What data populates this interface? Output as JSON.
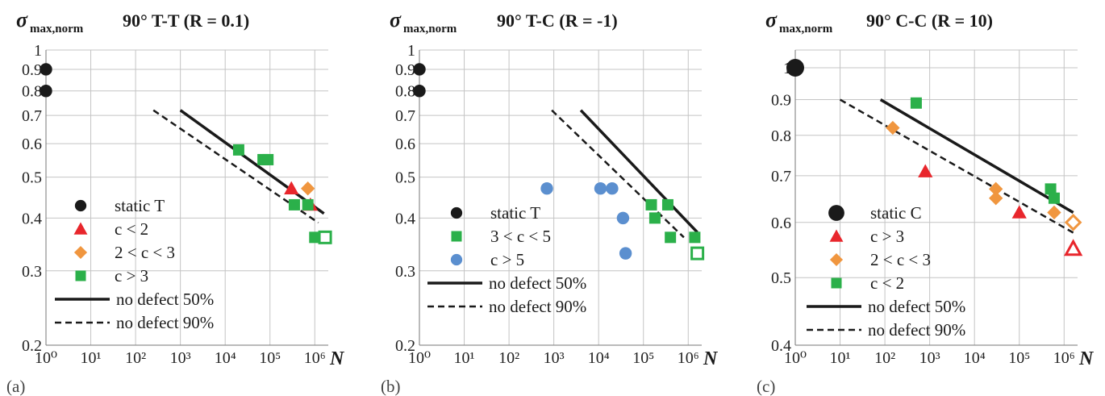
{
  "ylabel_main": "σ",
  "ylabel_sub": "max,norm",
  "xlabel": "N",
  "colors": {
    "black": "#1a1a1a",
    "red": "#e8262c",
    "orange": "#f0963f",
    "green": "#2bb04a",
    "blue": "#5b8fcf"
  },
  "chart_data": [
    {
      "type": "scatter",
      "panel_label": "(a)",
      "title": "90° T-T (R = 0.1)",
      "xscale": "log",
      "yscale": "log",
      "xlim": [
        1,
        2000000
      ],
      "ylim": [
        0.2,
        1.0
      ],
      "xticks": [
        "10⁰",
        "10¹",
        "10²",
        "10³",
        "10⁴",
        "10⁵",
        "10⁶"
      ],
      "yticks": [
        {
          "v": 0.2,
          "t": "0.2"
        },
        {
          "v": 0.3,
          "t": "0.3"
        },
        {
          "v": 0.4,
          "t": "0.4"
        },
        {
          "v": 0.5,
          "t": "0.5"
        },
        {
          "v": 0.6,
          "t": "0.6"
        },
        {
          "v": 0.7,
          "t": "0.7"
        },
        {
          "v": 0.8,
          "t": "0.8"
        },
        {
          "v": 0.9,
          "t": "0.9"
        },
        {
          "v": 1.0,
          "t": "1"
        }
      ],
      "series": [
        {
          "name": "static T",
          "marker": "circle",
          "color": "black",
          "points": [
            {
              "x": 1,
              "y": 0.9
            },
            {
              "x": 1,
              "y": 0.8
            }
          ]
        },
        {
          "name": "c < 2",
          "marker": "triangle",
          "color": "red",
          "points": [
            {
              "x": 300000,
              "y": 0.47
            },
            {
              "x": 800000,
              "y": 0.43
            }
          ]
        },
        {
          "name": "2 < c < 3",
          "marker": "diamond",
          "color": "orange",
          "points": [
            {
              "x": 700000,
              "y": 0.47
            }
          ]
        },
        {
          "name": "c > 3",
          "marker": "square",
          "color": "green",
          "points": [
            {
              "x": 20000,
              "y": 0.58
            },
            {
              "x": 70000,
              "y": 0.55
            },
            {
              "x": 90000,
              "y": 0.55
            },
            {
              "x": 350000,
              "y": 0.43
            },
            {
              "x": 700000,
              "y": 0.43
            },
            {
              "x": 1000000,
              "y": 0.36
            },
            {
              "x": 1700000,
              "y": 0.36,
              "hollow": true
            }
          ]
        }
      ],
      "lines": [
        {
          "name": "no defect 50%",
          "style": "solid",
          "x": [
            1000,
            1600000
          ],
          "y": [
            0.72,
            0.41
          ]
        },
        {
          "name": "no defect 90%",
          "style": "dashed",
          "x": [
            250,
            1200000
          ],
          "y": [
            0.72,
            0.39
          ]
        }
      ],
      "legend": [
        {
          "label": "static T",
          "marker": "circle",
          "color": "black"
        },
        {
          "label": "c < 2",
          "marker": "triangle",
          "color": "red"
        },
        {
          "label": "2 < c < 3",
          "marker": "diamond",
          "color": "orange"
        },
        {
          "label": "c > 3",
          "marker": "square",
          "color": "green"
        },
        {
          "label": "no defect 50%",
          "marker": "solid"
        },
        {
          "label": "no defect 90%",
          "marker": "dashed"
        }
      ]
    },
    {
      "type": "scatter",
      "panel_label": "(b)",
      "title": "90° T-C (R = -1)",
      "xscale": "log",
      "yscale": "log",
      "xlim": [
        1,
        2000000
      ],
      "ylim": [
        0.2,
        1.0
      ],
      "xticks": [
        "10⁰",
        "10¹",
        "10²",
        "10³",
        "10⁴",
        "10⁵",
        "10⁶"
      ],
      "yticks": [
        {
          "v": 0.2,
          "t": "0.2"
        },
        {
          "v": 0.3,
          "t": "0.3"
        },
        {
          "v": 0.4,
          "t": "0.4"
        },
        {
          "v": 0.5,
          "t": "0.5"
        },
        {
          "v": 0.6,
          "t": "0.6"
        },
        {
          "v": 0.7,
          "t": "0.7"
        },
        {
          "v": 0.8,
          "t": "0.8"
        },
        {
          "v": 0.9,
          "t": "0.9"
        },
        {
          "v": 1.0,
          "t": "1"
        }
      ],
      "series": [
        {
          "name": "static T",
          "marker": "circle",
          "color": "black",
          "points": [
            {
              "x": 1,
              "y": 0.9
            },
            {
              "x": 1,
              "y": 0.8
            }
          ]
        },
        {
          "name": "3 < c < 5",
          "marker": "square",
          "color": "green",
          "points": [
            {
              "x": 150000,
              "y": 0.43
            },
            {
              "x": 180000,
              "y": 0.4
            },
            {
              "x": 350000,
              "y": 0.43
            },
            {
              "x": 400000,
              "y": 0.36
            },
            {
              "x": 1400000,
              "y": 0.36
            },
            {
              "x": 1600000,
              "y": 0.33,
              "hollow": true
            }
          ]
        },
        {
          "name": "c > 5",
          "marker": "circle",
          "color": "blue",
          "points": [
            {
              "x": 700,
              "y": 0.47
            },
            {
              "x": 11000,
              "y": 0.47
            },
            {
              "x": 20000,
              "y": 0.47
            },
            {
              "x": 35000,
              "y": 0.4
            },
            {
              "x": 40000,
              "y": 0.33
            }
          ]
        }
      ],
      "lines": [
        {
          "name": "no defect 50%",
          "style": "solid",
          "x": [
            4000,
            1600000
          ],
          "y": [
            0.72,
            0.37
          ]
        },
        {
          "name": "no defect 90%",
          "style": "dashed",
          "x": [
            900,
            800000
          ],
          "y": [
            0.72,
            0.36
          ]
        }
      ],
      "legend": [
        {
          "label": "static T",
          "marker": "circle",
          "color": "black"
        },
        {
          "label": "3 < c < 5",
          "marker": "square",
          "color": "green"
        },
        {
          "label": "c > 5",
          "marker": "circle",
          "color": "blue"
        },
        {
          "label": "no defect 50%",
          "marker": "solid"
        },
        {
          "label": "no defect 90%",
          "marker": "dashed"
        }
      ]
    },
    {
      "type": "scatter",
      "panel_label": "(c)",
      "title": "90° C-C (R = 10)",
      "xscale": "log",
      "yscale": "log",
      "xlim": [
        1,
        2000000
      ],
      "ylim": [
        0.4,
        1.0
      ],
      "xticks": [
        "10⁰",
        "10¹",
        "10²",
        "10³",
        "10⁴",
        "10⁵",
        "10⁶"
      ],
      "yticks": [
        {
          "v": 0.4,
          "t": "0.4"
        },
        {
          "v": 0.5,
          "t": "0.5"
        },
        {
          "v": 0.6,
          "t": "0.6"
        },
        {
          "v": 0.7,
          "t": "0.7"
        },
        {
          "v": 0.8,
          "t": "0.8"
        },
        {
          "v": 0.9,
          "t": "0.9"
        },
        {
          "v": 1.0,
          "t": "1"
        }
      ],
      "series": [
        {
          "name": "static C",
          "marker": "circle",
          "color": "black",
          "points": [
            {
              "x": 1,
              "y": 1.0
            }
          ]
        },
        {
          "name": "c > 3",
          "marker": "triangle",
          "color": "red",
          "points": [
            {
              "x": 800,
              "y": 0.71
            },
            {
              "x": 100000,
              "y": 0.62
            },
            {
              "x": 1600000,
              "y": 0.55,
              "hollow": true
            }
          ]
        },
        {
          "name": "2 < c < 3",
          "marker": "diamond",
          "color": "orange",
          "points": [
            {
              "x": 150,
              "y": 0.82
            },
            {
              "x": 30000,
              "y": 0.67
            },
            {
              "x": 30000,
              "y": 0.65
            },
            {
              "x": 600000,
              "y": 0.62
            },
            {
              "x": 1600000,
              "y": 0.6,
              "hollow": true
            }
          ]
        },
        {
          "name": "c < 2",
          "marker": "square",
          "color": "green",
          "points": [
            {
              "x": 500,
              "y": 0.89
            },
            {
              "x": 500000,
              "y": 0.67
            },
            {
              "x": 600000,
              "y": 0.65
            }
          ]
        }
      ],
      "lines": [
        {
          "name": "no defect 50%",
          "style": "solid",
          "x": [
            80,
            1600000
          ],
          "y": [
            0.9,
            0.62
          ]
        },
        {
          "name": "no defect 90%",
          "style": "dashed",
          "x": [
            10,
            1600000
          ],
          "y": [
            0.9,
            0.58
          ]
        }
      ],
      "legend": [
        {
          "label": "static C",
          "marker": "circle",
          "color": "black"
        },
        {
          "label": "c > 3",
          "marker": "triangle",
          "color": "red"
        },
        {
          "label": "2 < c < 3",
          "marker": "diamond",
          "color": "orange"
        },
        {
          "label": "c < 2",
          "marker": "square",
          "color": "green"
        },
        {
          "label": "no defect 50%",
          "marker": "solid"
        },
        {
          "label": "no defect 90%",
          "marker": "dashed"
        }
      ]
    }
  ]
}
